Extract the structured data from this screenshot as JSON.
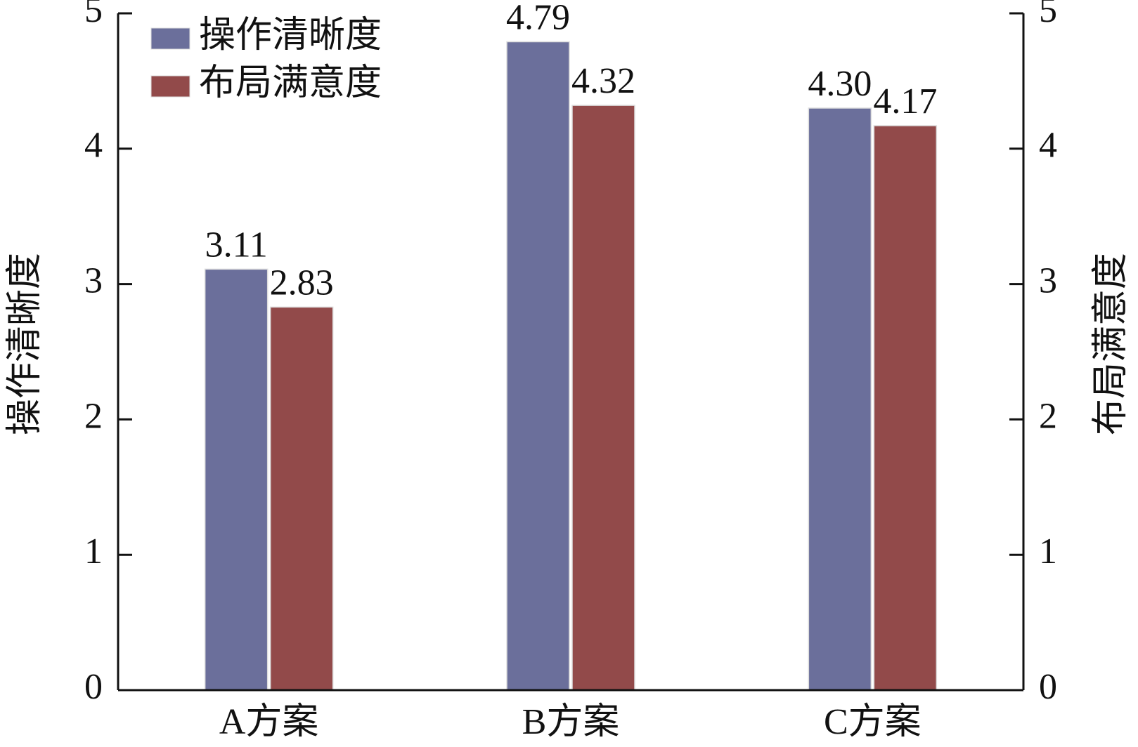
{
  "chart_data": {
    "type": "bar",
    "categories": [
      "A方案",
      "B方案",
      "C方案"
    ],
    "series": [
      {
        "name": "操作清晰度",
        "color": "#6b6f9b",
        "values": [
          3.11,
          4.79,
          4.3
        ],
        "value_labels": [
          "3.11",
          "4.79",
          "4.30"
        ]
      },
      {
        "name": "布局满意度",
        "color": "#924a4a",
        "axis": "y2",
        "values": [
          2.83,
          4.32,
          4.17
        ],
        "value_labels": [
          "2.83",
          "4.32",
          "4.17"
        ]
      }
    ],
    "y_label": "操作清晰度",
    "y2_label": "布局满意度",
    "ylim": [
      0,
      5
    ],
    "yticks": [
      0,
      1,
      2,
      3,
      4,
      5
    ],
    "y2lim": [
      0,
      5
    ],
    "y2ticks": [
      0,
      1,
      2,
      3,
      4,
      5
    ],
    "legend": "upper left"
  }
}
